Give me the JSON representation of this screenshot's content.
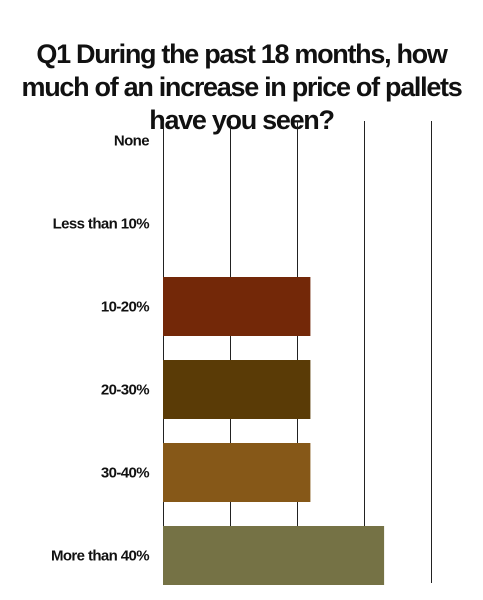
{
  "chart_data": {
    "type": "bar",
    "orientation": "horizontal",
    "title": "Q1 During the past 18 months, how much of an increase in price of pallets have you seen?",
    "categories": [
      "None",
      "Less than 10%",
      "10-20%",
      "20-30%",
      "30-40%",
      "More than 40%"
    ],
    "values": [
      0,
      0,
      22,
      22,
      22,
      33
    ],
    "colors": [
      "#732808",
      "#732808",
      "#732808",
      "#5a3b06",
      "#865818",
      "#757245"
    ],
    "xlim": [
      0,
      40
    ],
    "x_gridlines": [
      0,
      10,
      20,
      30,
      40
    ],
    "grid": true,
    "xlabel": "",
    "ylabel": ""
  }
}
